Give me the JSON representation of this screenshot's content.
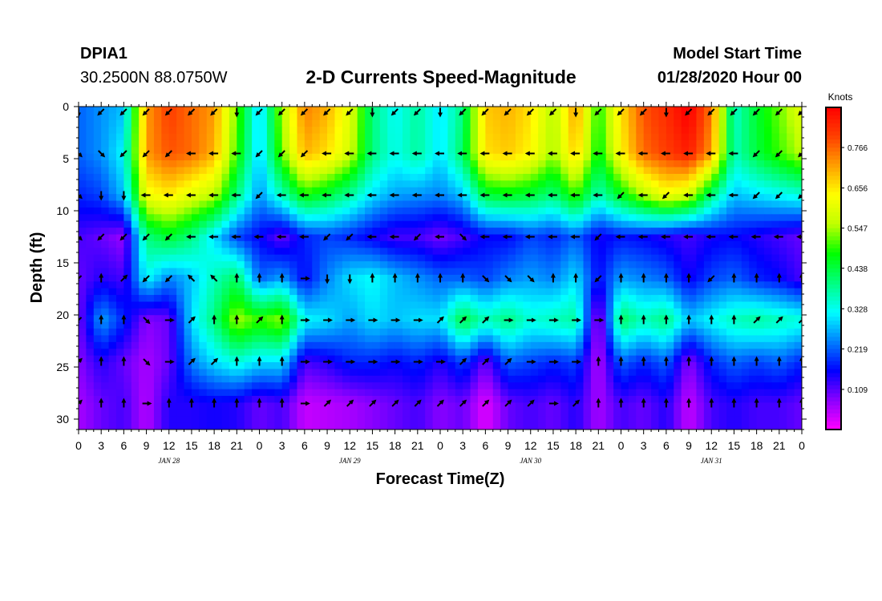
{
  "header": {
    "station": "DPIA1",
    "coords": "30.2500N 88.0750W",
    "title": "2-D Currents Speed-Magnitude",
    "model_start_label": "Model Start Time",
    "model_start_value": "01/28/2020 Hour 00"
  },
  "colors": {
    "scale": [
      "#ff00ff",
      "#8a00ff",
      "#0000ff",
      "#0080ff",
      "#00ffff",
      "#00ff80",
      "#00ff00",
      "#c0ff00",
      "#ffff00",
      "#ffa000",
      "#ff4000",
      "#ff0000"
    ]
  },
  "chart_data": {
    "type": "heatmap",
    "title": "2-D Currents Speed-Magnitude",
    "xlabel": "Forecast Time(Z)",
    "ylabel": "Depth (ft)",
    "ylim": [
      31,
      0
    ],
    "y_ticks": [
      0,
      5,
      10,
      15,
      20,
      25,
      30
    ],
    "x_hours": [
      0,
      3,
      6,
      9,
      12,
      15,
      18,
      21,
      24,
      27,
      30,
      33,
      36,
      39,
      42,
      45,
      48,
      51,
      54,
      57,
      60,
      63,
      66,
      69,
      72,
      75,
      78,
      81,
      84,
      87,
      90,
      93,
      96
    ],
    "x_tick_labels": [
      "0",
      "3",
      "6",
      "9",
      "12",
      "15",
      "18",
      "21",
      "0",
      "3",
      "6",
      "9",
      "12",
      "15",
      "18",
      "21",
      "0",
      "3",
      "6",
      "9",
      "12",
      "15",
      "18",
      "21",
      "0",
      "3",
      "6",
      "9",
      "12",
      "15",
      "18",
      "21",
      "0"
    ],
    "date_labels": [
      {
        "hour": 12,
        "label": "JAN 28"
      },
      {
        "hour": 36,
        "label": "JAN 29"
      },
      {
        "hour": 60,
        "label": "JAN 30"
      },
      {
        "hour": 84,
        "label": "JAN 31"
      }
    ],
    "depths_ft": [
      0.5,
      4.5,
      8.5,
      12.5,
      16.5,
      20.5,
      24.5,
      28.5
    ],
    "speed_knots": [
      [
        0.22,
        0.25,
        0.28,
        0.72,
        0.8,
        0.76,
        0.72,
        0.52,
        0.28,
        0.55,
        0.74,
        0.7,
        0.6,
        0.4,
        0.32,
        0.38,
        0.3,
        0.4,
        0.68,
        0.7,
        0.66,
        0.55,
        0.72,
        0.48,
        0.66,
        0.78,
        0.82,
        0.88,
        0.75,
        0.35,
        0.45,
        0.52,
        0.6
      ],
      [
        0.22,
        0.25,
        0.32,
        0.72,
        0.78,
        0.76,
        0.7,
        0.5,
        0.28,
        0.52,
        0.7,
        0.66,
        0.58,
        0.4,
        0.33,
        0.38,
        0.3,
        0.42,
        0.66,
        0.68,
        0.64,
        0.54,
        0.68,
        0.46,
        0.64,
        0.76,
        0.8,
        0.84,
        0.72,
        0.36,
        0.44,
        0.5,
        0.56
      ],
      [
        0.18,
        0.2,
        0.28,
        0.62,
        0.65,
        0.6,
        0.56,
        0.4,
        0.25,
        0.36,
        0.48,
        0.44,
        0.38,
        0.3,
        0.26,
        0.25,
        0.24,
        0.28,
        0.44,
        0.46,
        0.44,
        0.4,
        0.5,
        0.36,
        0.46,
        0.55,
        0.62,
        0.58,
        0.4,
        0.28,
        0.3,
        0.32,
        0.34
      ],
      [
        0.12,
        0.1,
        0.07,
        0.4,
        0.45,
        0.4,
        0.3,
        0.2,
        0.16,
        0.1,
        0.18,
        0.2,
        0.18,
        0.15,
        0.12,
        0.12,
        0.09,
        0.12,
        0.16,
        0.16,
        0.2,
        0.18,
        0.22,
        0.15,
        0.17,
        0.16,
        0.14,
        0.12,
        0.15,
        0.16,
        0.14,
        0.12,
        0.1
      ],
      [
        0.1,
        0.14,
        0.12,
        0.32,
        0.24,
        0.28,
        0.36,
        0.42,
        0.22,
        0.26,
        0.16,
        0.24,
        0.3,
        0.32,
        0.28,
        0.25,
        0.22,
        0.22,
        0.2,
        0.24,
        0.26,
        0.24,
        0.3,
        0.16,
        0.26,
        0.24,
        0.22,
        0.15,
        0.2,
        0.22,
        0.18,
        0.16,
        0.12
      ],
      [
        0.09,
        0.26,
        0.18,
        0.08,
        0.1,
        0.3,
        0.4,
        0.55,
        0.5,
        0.54,
        0.32,
        0.3,
        0.26,
        0.3,
        0.28,
        0.3,
        0.3,
        0.44,
        0.36,
        0.4,
        0.34,
        0.36,
        0.38,
        0.05,
        0.42,
        0.36,
        0.4,
        0.28,
        0.32,
        0.36,
        0.38,
        0.36,
        0.34
      ],
      [
        0.08,
        0.14,
        0.1,
        0.06,
        0.1,
        0.24,
        0.3,
        0.34,
        0.3,
        0.3,
        0.12,
        0.14,
        0.18,
        0.18,
        0.16,
        0.18,
        0.14,
        0.2,
        0.1,
        0.22,
        0.2,
        0.18,
        0.2,
        0.05,
        0.22,
        0.18,
        0.22,
        0.08,
        0.18,
        0.22,
        0.2,
        0.22,
        0.18
      ],
      [
        0.06,
        0.1,
        0.12,
        0.05,
        0.14,
        0.14,
        0.15,
        0.14,
        0.1,
        0.12,
        0.04,
        0.05,
        0.06,
        0.08,
        0.1,
        0.12,
        0.08,
        0.1,
        0.02,
        0.1,
        0.12,
        0.1,
        0.14,
        0.06,
        0.12,
        0.1,
        0.14,
        0.04,
        0.12,
        0.14,
        0.12,
        0.12,
        0.1
      ]
    ],
    "vmin": 0.0,
    "vmax": 0.875,
    "colorbar_title": "Knots",
    "colorbar_ticks": [
      "0.109",
      "0.219",
      "0.328",
      "0.438",
      "0.547",
      "0.656",
      "0.766"
    ],
    "colorbar_tick_values": [
      0.109,
      0.219,
      0.328,
      0.438,
      0.547,
      0.656,
      0.766
    ],
    "vector_rows": [
      {
        "depth": 0.5,
        "dirs": [
          "s",
          "sw",
          "sw",
          "sw",
          "sw",
          "sw",
          "sw",
          "s",
          "sw",
          "sw",
          "sw",
          "sw",
          "sw",
          "s",
          "sw",
          "sw",
          "s",
          "sw",
          "sw",
          "sw",
          "sw",
          "sw",
          "s",
          "sw",
          "sw",
          "sw",
          "s",
          "sw",
          "sw",
          "sw",
          "sw",
          "sw",
          "sw"
        ]
      },
      {
        "depth": 4.5,
        "dirs": [
          "se",
          "se",
          "sw",
          "sw",
          "sw",
          "w",
          "w",
          "w",
          "sw",
          "sw",
          "sw",
          "w",
          "w",
          "w",
          "w",
          "w",
          "w",
          "w",
          "w",
          "w",
          "w",
          "w",
          "w",
          "w",
          "w",
          "w",
          "w",
          "w",
          "w",
          "w",
          "sw",
          "sw",
          "sw"
        ]
      },
      {
        "depth": 8.5,
        "dirs": [
          "se",
          "s",
          "s",
          "w",
          "w",
          "w",
          "w",
          "w",
          "sw",
          "w",
          "w",
          "w",
          "w",
          "w",
          "w",
          "w",
          "w",
          "w",
          "w",
          "w",
          "w",
          "w",
          "w",
          "w",
          "sw",
          "w",
          "sw",
          "w",
          "w",
          "w",
          "sw",
          "sw",
          "sw"
        ]
      },
      {
        "depth": 12.5,
        "dirs": [
          "se",
          "sw",
          "sw",
          "sw",
          "sw",
          "w",
          "w",
          "w",
          "w",
          "w",
          "w",
          "sw",
          "sw",
          "w",
          "w",
          "sw",
          "w",
          "se",
          "w",
          "w",
          "w",
          "w",
          "w",
          "sw",
          "w",
          "w",
          "w",
          "w",
          "w",
          "w",
          "w",
          "w",
          "w"
        ]
      },
      {
        "depth": 16.5,
        "dirs": [
          "sw",
          "n",
          "ne",
          "sw",
          "sw",
          "nw",
          "nw",
          "n",
          "n",
          "n",
          "e",
          "s",
          "s",
          "n",
          "n",
          "n",
          "n",
          "n",
          "se",
          "se",
          "se",
          "n",
          "n",
          "sw",
          "n",
          "n",
          "n",
          "n",
          "sw",
          "n",
          "n",
          "n",
          "n"
        ]
      },
      {
        "depth": 20.5,
        "dirs": [
          "sw",
          "n",
          "n",
          "se",
          "e",
          "ne",
          "n",
          "n",
          "ne",
          "n",
          "e",
          "e",
          "e",
          "e",
          "e",
          "e",
          "ne",
          "ne",
          "ne",
          "e",
          "e",
          "e",
          "e",
          "e",
          "n",
          "n",
          "n",
          "n",
          "n",
          "n",
          "ne",
          "ne",
          "ne"
        ]
      },
      {
        "depth": 24.5,
        "dirs": [
          "ne",
          "n",
          "n",
          "se",
          "e",
          "ne",
          "ne",
          "n",
          "n",
          "n",
          "e",
          "e",
          "e",
          "e",
          "e",
          "e",
          "e",
          "ne",
          "ne",
          "ne",
          "e",
          "e",
          "e",
          "n",
          "n",
          "n",
          "n",
          "n",
          "n",
          "n",
          "n",
          "n",
          "n"
        ]
      },
      {
        "depth": 28.5,
        "dirs": [
          "ne",
          "n",
          "n",
          "e",
          "n",
          "n",
          "n",
          "n",
          "n",
          "n",
          "e",
          "ne",
          "ne",
          "ne",
          "ne",
          "ne",
          "ne",
          "ne",
          "ne",
          "ne",
          "ne",
          "e",
          "ne",
          "n",
          "n",
          "n",
          "n",
          "n",
          "n",
          "n",
          "n",
          "n",
          "n"
        ]
      }
    ]
  }
}
